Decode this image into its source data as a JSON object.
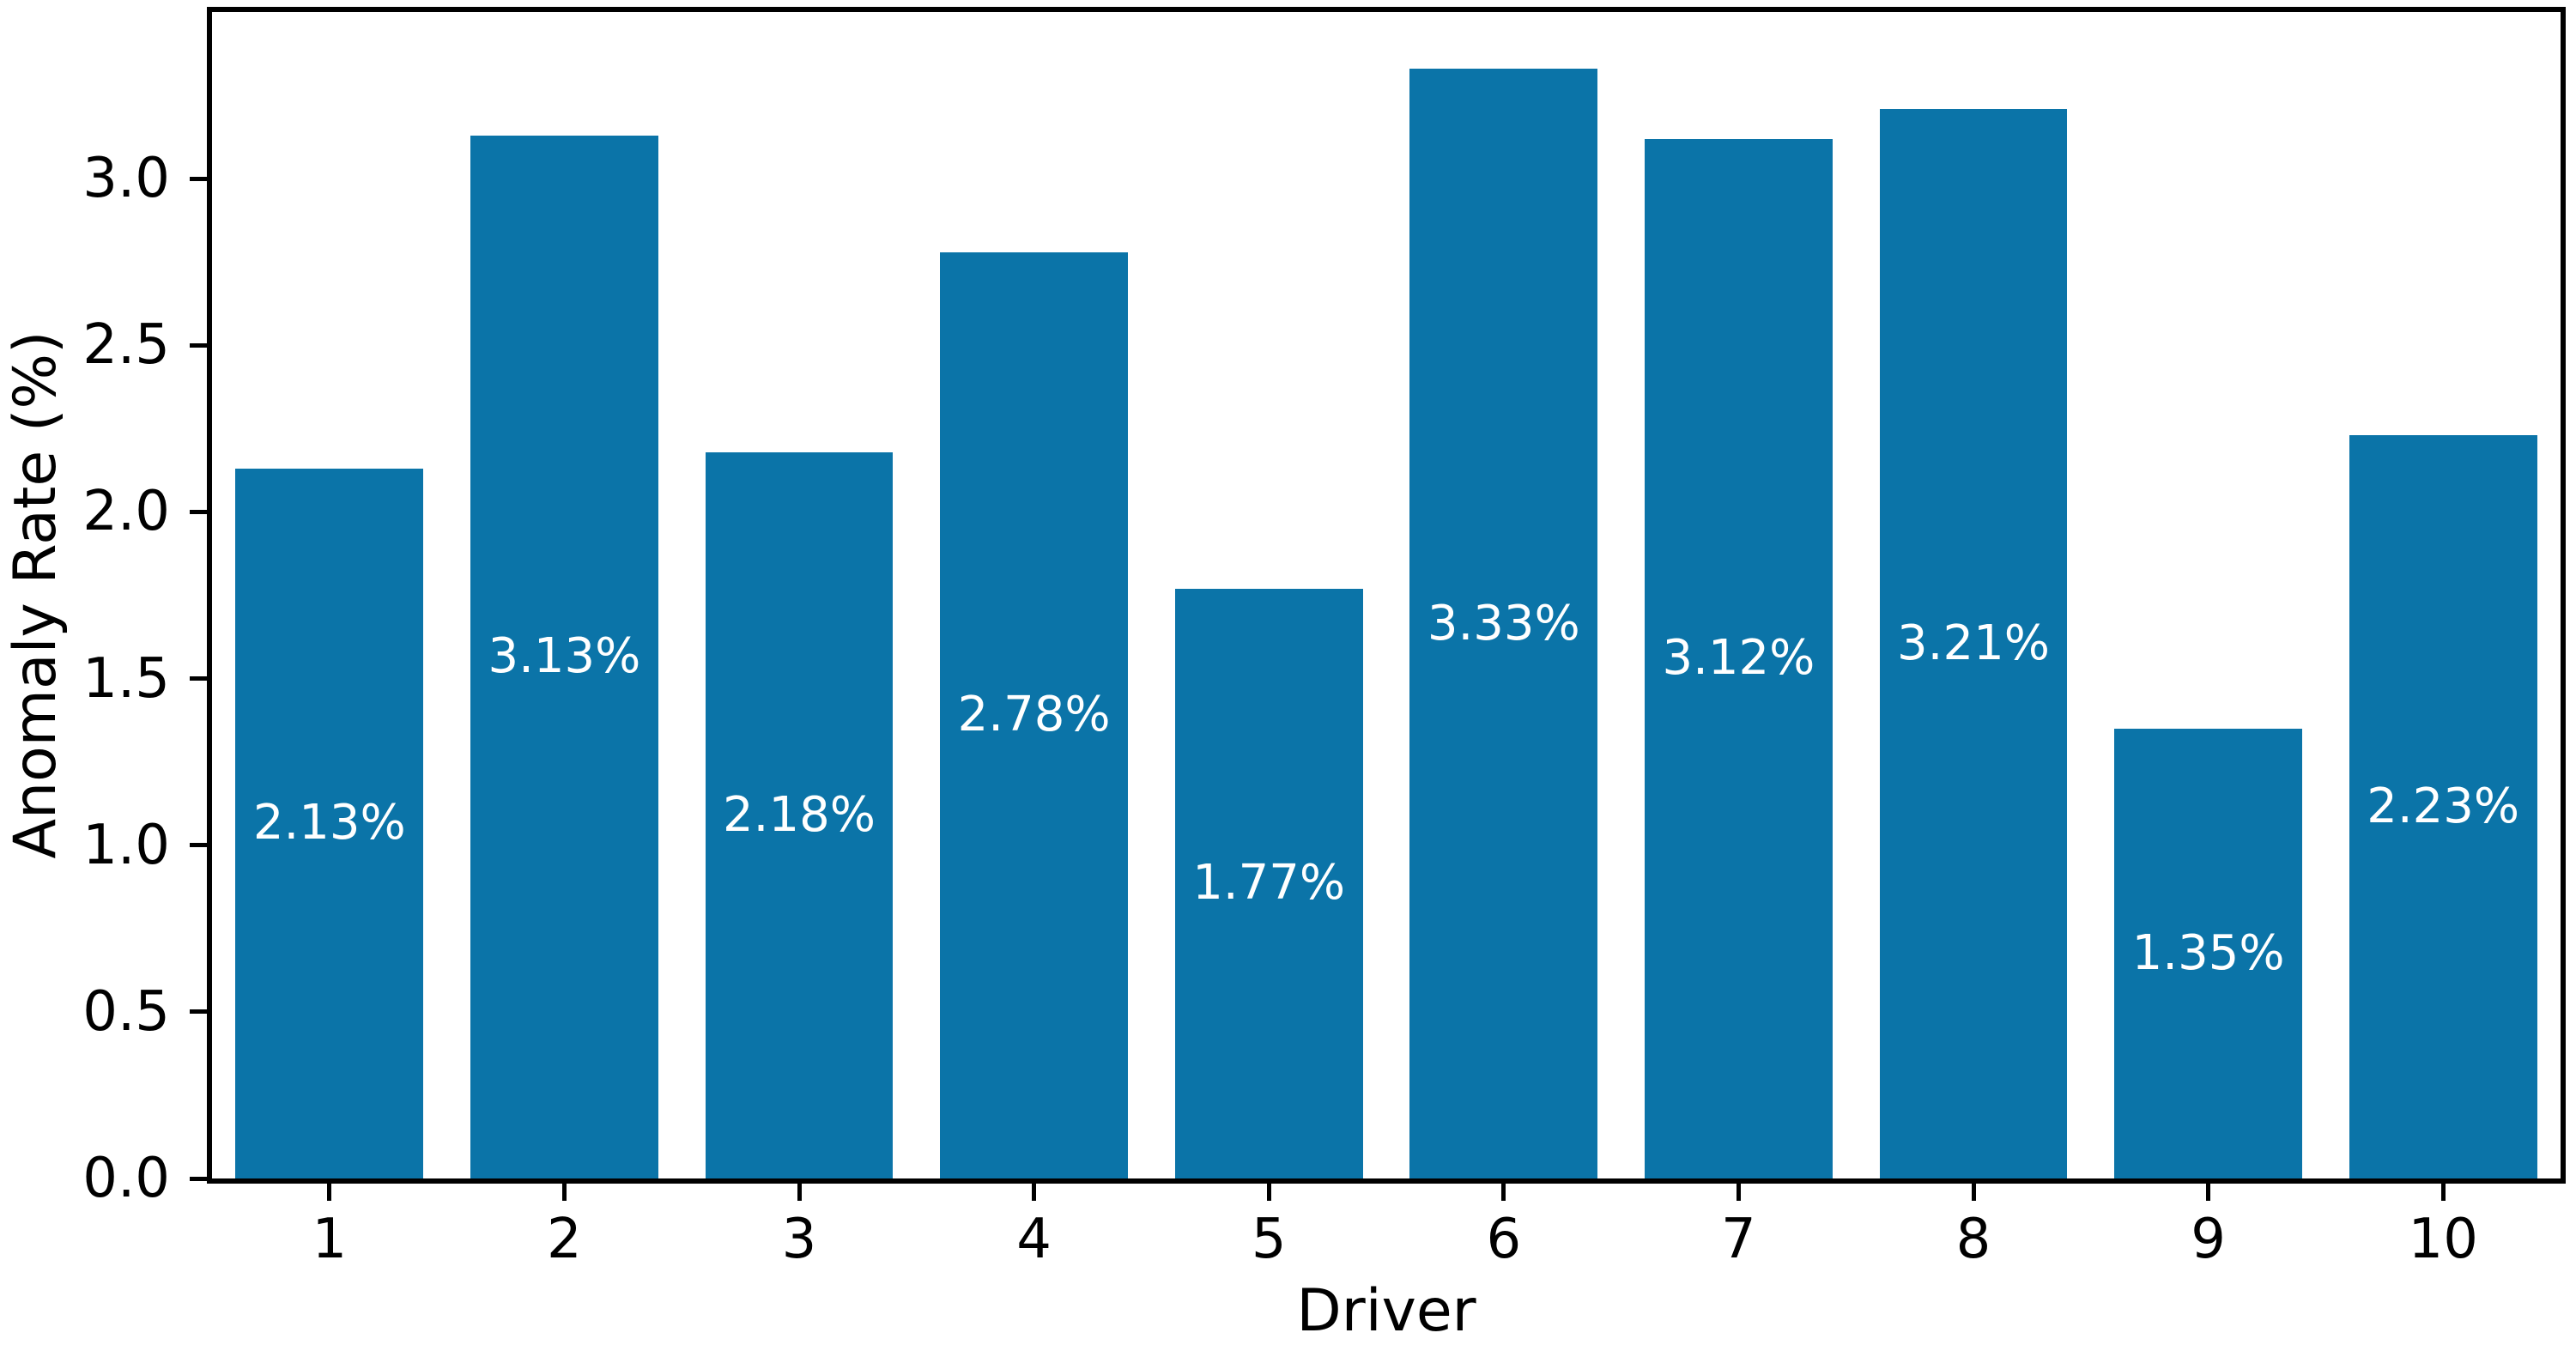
{
  "chart_data": {
    "type": "bar",
    "title": "",
    "xlabel": "Driver",
    "ylabel": "Anomaly Rate (%)",
    "categories": [
      "1",
      "2",
      "3",
      "4",
      "5",
      "6",
      "7",
      "8",
      "9",
      "10"
    ],
    "values": [
      2.13,
      3.13,
      2.18,
      2.78,
      1.77,
      3.33,
      3.12,
      3.21,
      1.35,
      2.23
    ],
    "bar_labels": [
      "2.13%",
      "3.13%",
      "2.18%",
      "2.78%",
      "1.77%",
      "3.33%",
      "3.12%",
      "3.21%",
      "1.35%",
      "2.23%"
    ],
    "yticks": [
      0.0,
      0.5,
      1.0,
      1.5,
      2.0,
      2.5,
      3.0
    ],
    "ytick_labels": [
      "0.0",
      "0.5",
      "1.0",
      "1.5",
      "2.0",
      "2.5",
      "3.0"
    ],
    "ylim": [
      0,
      3.5
    ],
    "xlim": [
      0.5,
      10.5
    ],
    "bar_width": 0.8,
    "grid": false,
    "legend_position": "none",
    "colors": {
      "bar": "#0b74a8",
      "bar_label": "#ffffff",
      "axis": "#000000",
      "background": "#ffffff"
    }
  }
}
